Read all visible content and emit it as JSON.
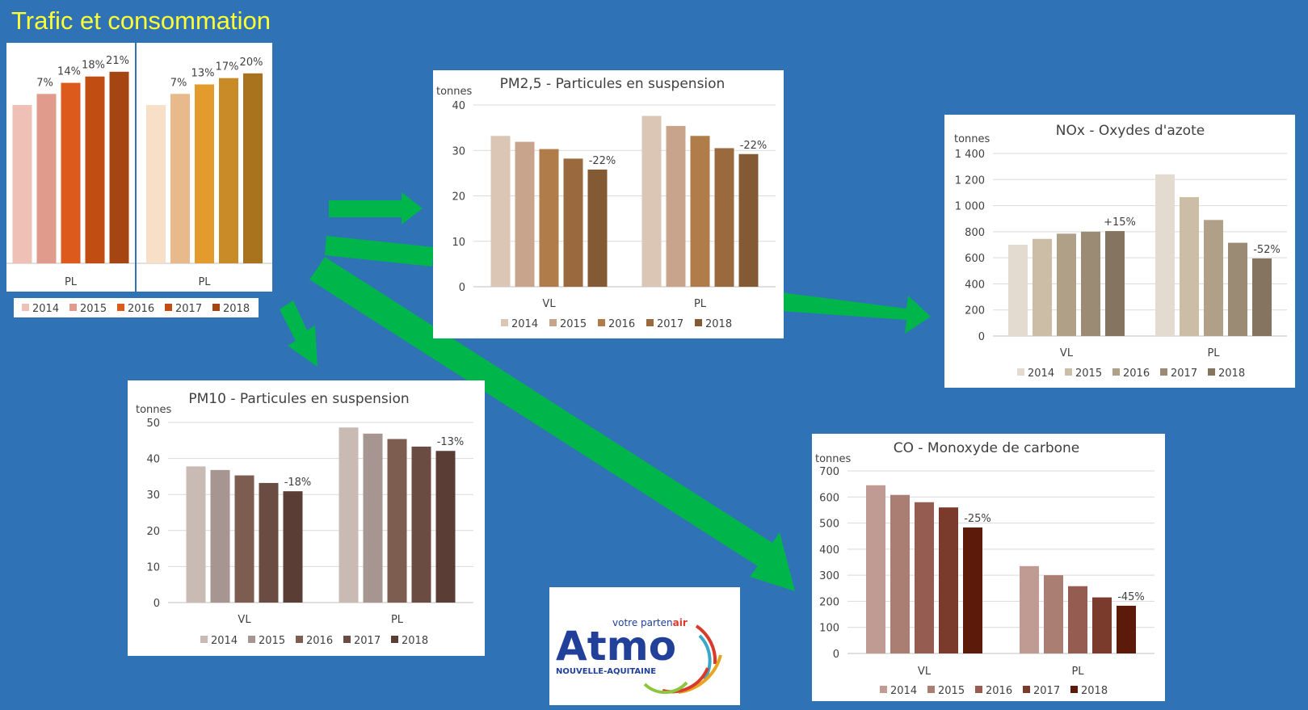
{
  "page_title": "Trafic et consommation",
  "years": [
    "2014",
    "2015",
    "2016",
    "2017",
    "2018"
  ],
  "logo": {
    "tagline_prefix": "votre parten",
    "tagline_suffix": "air",
    "name": "Atmo",
    "region": "NOUVELLE-AQUITAINE"
  },
  "chart_data": [
    {
      "id": "trafic-pl-1",
      "type": "bar",
      "categories": [
        "PL"
      ],
      "series": [
        {
          "name": "2014",
          "values": [
            100
          ]
        },
        {
          "name": "2015",
          "values": [
            107
          ]
        },
        {
          "name": "2016",
          "values": [
            114
          ]
        },
        {
          "name": "2017",
          "values": [
            118
          ]
        },
        {
          "name": "2018",
          "values": [
            121
          ]
        }
      ],
      "labels": [
        "",
        "7%",
        "14%",
        "18%",
        "21%"
      ],
      "ylim": [
        0,
        125
      ],
      "colors": [
        "#efc1b6",
        "#e19b8c",
        "#dc5a1c",
        "#c14d12",
        "#a44512"
      ]
    },
    {
      "id": "trafic-pl-2",
      "type": "bar",
      "categories": [
        "PL"
      ],
      "series": [
        {
          "name": "2014",
          "values": [
            100
          ]
        },
        {
          "name": "2015",
          "values": [
            107
          ]
        },
        {
          "name": "2016",
          "values": [
            113
          ]
        },
        {
          "name": "2017",
          "values": [
            117
          ]
        },
        {
          "name": "2018",
          "values": [
            120
          ]
        }
      ],
      "labels": [
        "",
        "7%",
        "13%",
        "17%",
        "20%"
      ],
      "ylim": [
        0,
        125
      ],
      "colors": [
        "#f7dfc8",
        "#e8b98a",
        "#e29b2c",
        "#c98b28",
        "#a8731c"
      ]
    },
    {
      "id": "pm25",
      "type": "bar",
      "title": "PM2,5 - Particules en suspension",
      "ylabel": "tonnes",
      "categories": [
        "VL",
        "PL"
      ],
      "series": [
        {
          "name": "2014",
          "values": [
            33.2,
            37.6
          ]
        },
        {
          "name": "2015",
          "values": [
            31.9,
            35.4
          ]
        },
        {
          "name": "2016",
          "values": [
            30.3,
            33.2
          ]
        },
        {
          "name": "2017",
          "values": [
            28.2,
            30.5
          ]
        },
        {
          "name": "2018",
          "values": [
            25.8,
            29.2
          ]
        }
      ],
      "annotations": [
        "-22%",
        "-22%"
      ],
      "ylim": [
        0,
        40
      ],
      "yticks": [
        "0",
        "10",
        "20",
        "30",
        "40"
      ],
      "colors": [
        "#dbc6b6",
        "#c8a48c",
        "#b07c49",
        "#9a6a3e",
        "#845a34"
      ]
    },
    {
      "id": "nox",
      "type": "bar",
      "title": "NOx - Oxydes d'azote",
      "ylabel": "tonnes",
      "categories": [
        "VL",
        "PL"
      ],
      "series": [
        {
          "name": "2014",
          "values": [
            700,
            1240
          ]
        },
        {
          "name": "2015",
          "values": [
            745,
            1065
          ]
        },
        {
          "name": "2016",
          "values": [
            785,
            890
          ]
        },
        {
          "name": "2017",
          "values": [
            800,
            715
          ]
        },
        {
          "name": "2018",
          "values": [
            805,
            595
          ]
        }
      ],
      "annotations": [
        "+15%",
        "-52%"
      ],
      "ylim": [
        0,
        1400
      ],
      "yticks": [
        "0",
        "200",
        "400",
        "600",
        "800",
        "1 000",
        "1 200",
        "1 400"
      ],
      "colors": [
        "#e3dbd0",
        "#cbbda6",
        "#b0a088",
        "#9b8a74",
        "#847460"
      ]
    },
    {
      "id": "pm10",
      "type": "bar",
      "title": "PM10 - Particules en suspension",
      "ylabel": "tonnes",
      "categories": [
        "VL",
        "PL"
      ],
      "series": [
        {
          "name": "2014",
          "values": [
            37.8,
            48.6
          ]
        },
        {
          "name": "2015",
          "values": [
            36.8,
            46.9
          ]
        },
        {
          "name": "2016",
          "values": [
            35.3,
            45.4
          ]
        },
        {
          "name": "2017",
          "values": [
            33.2,
            43.3
          ]
        },
        {
          "name": "2018",
          "values": [
            30.9,
            42.1
          ]
        }
      ],
      "annotations": [
        "-18%",
        "-13%"
      ],
      "ylim": [
        0,
        50
      ],
      "yticks": [
        "0",
        "10",
        "20",
        "30",
        "40",
        "50"
      ],
      "colors": [
        "#c9bab4",
        "#a69590",
        "#7d5d50",
        "#6b4c42",
        "#5a3d34"
      ]
    },
    {
      "id": "co",
      "type": "bar",
      "title": "CO - Monoxyde de carbone",
      "ylabel": "tonnes",
      "categories": [
        "VL",
        "PL"
      ],
      "series": [
        {
          "name": "2014",
          "values": [
            645,
            335
          ]
        },
        {
          "name": "2015",
          "values": [
            608,
            300
          ]
        },
        {
          "name": "2016",
          "values": [
            580,
            258
          ]
        },
        {
          "name": "2017",
          "values": [
            560,
            215
          ]
        },
        {
          "name": "2018",
          "values": [
            483,
            183
          ]
        }
      ],
      "annotations": [
        "-25%",
        "-45%"
      ],
      "ylim": [
        0,
        700
      ],
      "yticks": [
        "0",
        "100",
        "200",
        "300",
        "400",
        "500",
        "600",
        "700"
      ],
      "colors": [
        "#c09b93",
        "#ab7e73",
        "#955c52",
        "#7a3b2d",
        "#5c1a0a"
      ]
    }
  ]
}
